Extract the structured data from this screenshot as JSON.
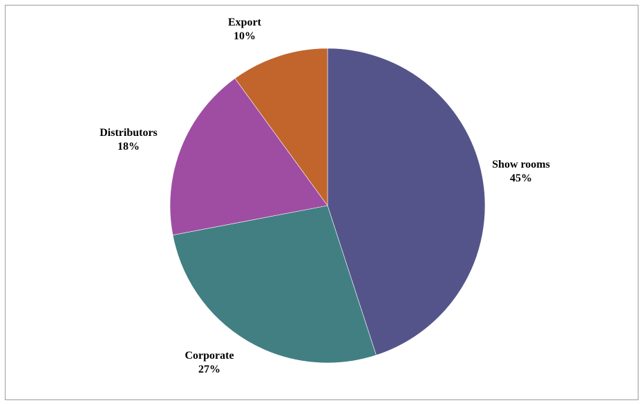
{
  "chart_data": {
    "type": "pie",
    "title": "",
    "categories": [
      "Show rooms",
      "Corporate",
      "Distributors",
      "Export"
    ],
    "values": [
      45,
      27,
      18,
      10
    ],
    "labels": [
      "45%",
      "27%",
      "18%",
      "10%"
    ],
    "colors": [
      "#55548a",
      "#417f82",
      "#9f4da3",
      "#c1652c"
    ],
    "start_angle_deg": 0,
    "direction": "clockwise",
    "legend": "none",
    "data_labels": "category-and-percent-outside"
  }
}
